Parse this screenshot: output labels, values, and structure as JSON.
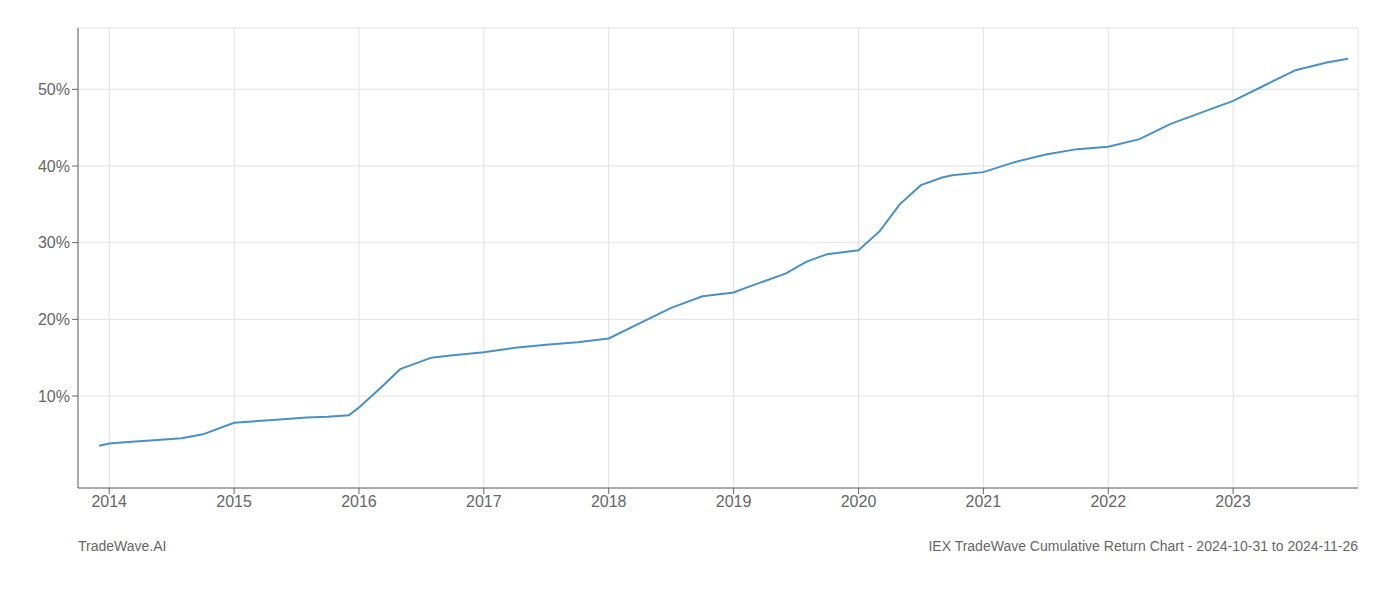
{
  "chart_data": {
    "type": "line",
    "title": "IEX TradeWave Cumulative Return Chart - 2024-10-31 to 2024-11-26",
    "annotations": [
      "TradeWave.AI"
    ],
    "color": "#4a90c4",
    "grid": true,
    "x": [
      2013.92,
      2014.0,
      2014.15,
      2014.33,
      2014.58,
      2014.75,
      2015.0,
      2015.25,
      2015.42,
      2015.58,
      2015.75,
      2015.92,
      2016.0,
      2016.17,
      2016.33,
      2016.58,
      2016.75,
      2017.0,
      2017.25,
      2017.5,
      2017.75,
      2018.0,
      2018.25,
      2018.5,
      2018.75,
      2019.0,
      2019.08,
      2019.25,
      2019.42,
      2019.58,
      2019.75,
      2020.0,
      2020.17,
      2020.33,
      2020.5,
      2020.67,
      2020.75,
      2021.0,
      2021.25,
      2021.5,
      2021.75,
      2022.0,
      2022.25,
      2022.5,
      2022.75,
      2023.0,
      2023.25,
      2023.5,
      2023.75,
      2023.92
    ],
    "values": [
      3.5,
      3.8,
      4.0,
      4.2,
      4.5,
      5.0,
      6.5,
      6.8,
      7.0,
      7.2,
      7.3,
      7.5,
      8.5,
      11.0,
      13.5,
      15.0,
      15.3,
      15.7,
      16.3,
      16.7,
      17.0,
      17.5,
      19.5,
      21.5,
      23.0,
      23.5,
      24.0,
      25.0,
      26.0,
      27.5,
      28.5,
      29.0,
      31.5,
      35.0,
      37.5,
      38.5,
      38.8,
      39.2,
      40.5,
      41.5,
      42.2,
      42.5,
      43.5,
      45.5,
      47.0,
      48.5,
      50.5,
      52.5,
      53.5,
      54.0
    ],
    "xlim": [
      2013.75,
      2024.0
    ],
    "ylim": [
      -2,
      58
    ],
    "xticks": [
      2014,
      2015,
      2016,
      2017,
      2018,
      2019,
      2020,
      2021,
      2022,
      2023
    ],
    "yticks": [
      {
        "value": 10,
        "label": "10%"
      },
      {
        "value": 20,
        "label": "20%"
      },
      {
        "value": 30,
        "label": "30%"
      },
      {
        "value": 40,
        "label": "40%"
      },
      {
        "value": 50,
        "label": "50%"
      }
    ]
  }
}
